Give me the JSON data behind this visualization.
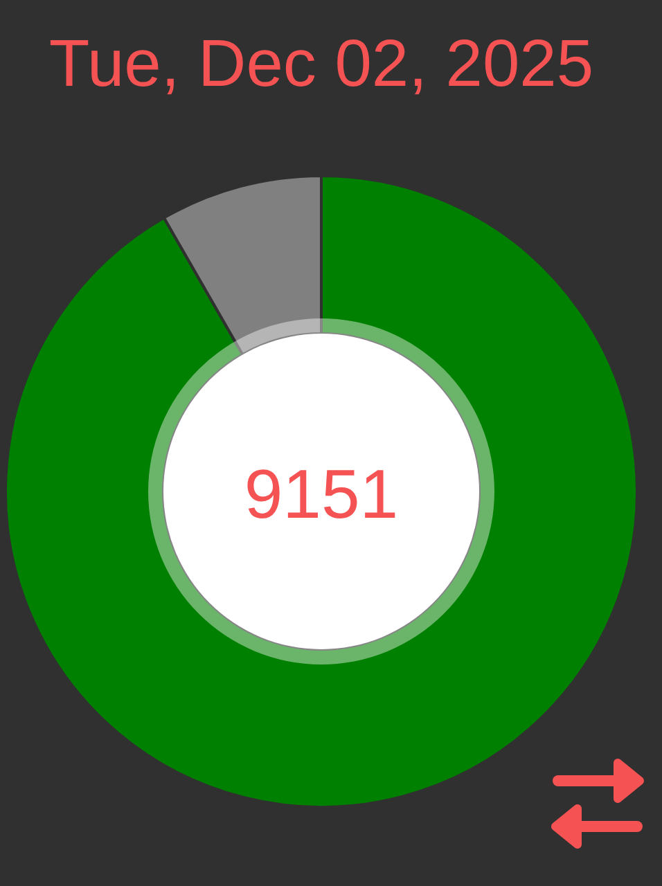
{
  "chart_data": {
    "type": "donut",
    "title": "Tue, Dec 02, 2025",
    "categories": [
      null,
      null
    ],
    "values": [
      91.7,
      8.3
    ],
    "colors": [
      "#008000",
      "#808080"
    ],
    "annotations": [
      "9151"
    ]
  }
}
